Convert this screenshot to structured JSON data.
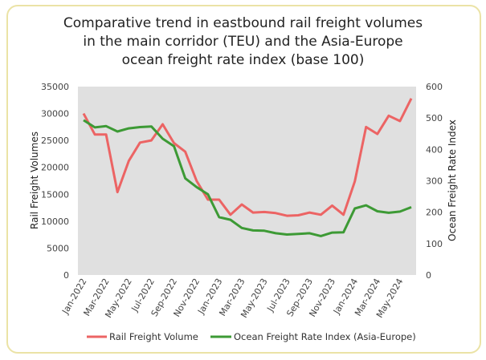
{
  "chart_data": {
    "type": "line",
    "title": [
      "Comparative trend in eastbound rail freight volumes",
      "in the main corridor (TEU) and the Asia-Europe",
      "ocean freight rate index (base 100)"
    ],
    "xlabel": "",
    "ylabel": "Rail Freight Volumes",
    "y2label": "Ocean Freight Rate Index",
    "ylim": [
      0,
      35000
    ],
    "y2lim": [
      0,
      600
    ],
    "yticks": [
      "0",
      "5000",
      "10000",
      "15000",
      "20000",
      "25000",
      "30000",
      "35000"
    ],
    "y2ticks": [
      "0",
      "100",
      "200",
      "300",
      "400",
      "500",
      "600"
    ],
    "x": [
      "Jan-2022",
      "Feb-2022",
      "Mar-2022",
      "Apr-2022",
      "May-2022",
      "Jun-2022",
      "Jul-2022",
      "Aug-2022",
      "Sep-2022",
      "Oct-2022",
      "Nov-2022",
      "Dec-2022",
      "Jan-2023",
      "Feb-2023",
      "Mar-2023",
      "Apr-2023",
      "May-2023",
      "Jun-2023",
      "Jul-2023",
      "Aug-2023",
      "Sep-2023",
      "Oct-2023",
      "Nov-2023",
      "Dec-2023",
      "Jan-2024",
      "Feb-2024",
      "Mar-2024",
      "Apr-2024",
      "May-2024",
      "Jun-2024"
    ],
    "xticks_shown": [
      "Jan-2022",
      "Mar-2022",
      "May-2022",
      "Jul-2022",
      "Sep-2022",
      "Nov-2022",
      "Jan-2023",
      "Mar-2023",
      "May-2023",
      "Jul-2023",
      "Sep-2023",
      "Nov-2023",
      "Jan-2024",
      "Mar-2024",
      "May-2024"
    ],
    "grid": false,
    "plot_background": "#e0e0e0",
    "legend_position": "bottom",
    "series": [
      {
        "name": "Rail Freight Volume",
        "axis": "left",
        "color": "#ec6464",
        "values": [
          30000,
          26100,
          26100,
          15400,
          21200,
          24600,
          25000,
          28000,
          24500,
          22900,
          17500,
          14000,
          14000,
          11200,
          13100,
          11600,
          11700,
          11500,
          11000,
          11100,
          11600,
          11200,
          12900,
          11200,
          17400,
          27500,
          26200,
          29600,
          28600,
          32800
        ]
      },
      {
        "name": "Ocean Freight Rate Index (Asia-Europe)",
        "axis": "right",
        "color": "#3d9a35",
        "values": [
          493,
          470,
          474,
          457,
          467,
          471,
          473,
          434,
          410,
          308,
          280,
          257,
          184,
          176,
          150,
          142,
          141,
          133,
          129,
          131,
          133,
          124,
          135,
          136,
          212,
          222,
          203,
          198,
          202,
          216
        ]
      }
    ]
  }
}
